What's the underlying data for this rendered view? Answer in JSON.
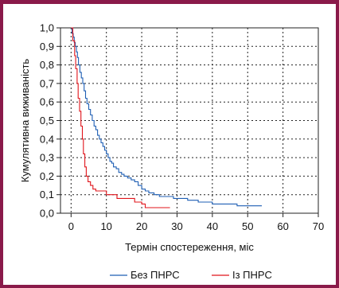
{
  "colors": {
    "frame": "#8a1a4a",
    "series_blue": "#1f5fb4",
    "series_red": "#e0141b",
    "grid": "#222222"
  },
  "chart_data": {
    "type": "line",
    "step": true,
    "xlabel": "Термін спостереження, міс",
    "ylabel": "Кумулятивна виживаність",
    "xlim": [
      -3,
      70
    ],
    "ylim": [
      0,
      1.0
    ],
    "x_ticks": [
      0,
      10,
      20,
      30,
      40,
      50,
      60,
      70
    ],
    "y_ticks": [
      0,
      0.1,
      0.2,
      0.3,
      0.4,
      0.5,
      0.6,
      0.7,
      0.8,
      0.9,
      1.0
    ],
    "x_tick_labels": [
      "0",
      "10",
      "20",
      "30",
      "40",
      "50",
      "60",
      "70"
    ],
    "y_tick_labels": [
      "0,0",
      "0,1",
      "0,2",
      "0,3",
      "0,4",
      "0,5",
      "0,6",
      "0,7",
      "0,8",
      "0,9",
      "1,0"
    ],
    "grid": true,
    "grid_style": "dotted",
    "legend_position": "bottom",
    "series": [
      {
        "name": "Без ПНРС",
        "color": "#1f5fb4",
        "points": [
          [
            0,
            1.0
          ],
          [
            0.3,
            0.97
          ],
          [
            0.6,
            0.95
          ],
          [
            0.9,
            0.92
          ],
          [
            1.2,
            0.9
          ],
          [
            1.5,
            0.87
          ],
          [
            1.8,
            0.84
          ],
          [
            2.1,
            0.8
          ],
          [
            2.5,
            0.76
          ],
          [
            2.9,
            0.73
          ],
          [
            3.3,
            0.7
          ],
          [
            3.7,
            0.66
          ],
          [
            4.1,
            0.62
          ],
          [
            4.5,
            0.59
          ],
          [
            5.0,
            0.56
          ],
          [
            5.5,
            0.53
          ],
          [
            6.0,
            0.5
          ],
          [
            6.5,
            0.47
          ],
          [
            7.0,
            0.45
          ],
          [
            7.5,
            0.42
          ],
          [
            8.0,
            0.4
          ],
          [
            8.5,
            0.38
          ],
          [
            9.0,
            0.36
          ],
          [
            9.5,
            0.34
          ],
          [
            10.0,
            0.32
          ],
          [
            10.5,
            0.3
          ],
          [
            11.0,
            0.28
          ],
          [
            11.5,
            0.27
          ],
          [
            12.0,
            0.25
          ],
          [
            12.8,
            0.24
          ],
          [
            13.5,
            0.22
          ],
          [
            14.3,
            0.21
          ],
          [
            15.0,
            0.2
          ],
          [
            16.0,
            0.19
          ],
          [
            17.0,
            0.18
          ],
          [
            18.0,
            0.17
          ],
          [
            19.0,
            0.15
          ],
          [
            20.0,
            0.13
          ],
          [
            21.0,
            0.12
          ],
          [
            22.0,
            0.11
          ],
          [
            23.5,
            0.1
          ],
          [
            25.0,
            0.09
          ],
          [
            29.0,
            0.08
          ],
          [
            33.0,
            0.07
          ],
          [
            36.0,
            0.06
          ],
          [
            40.0,
            0.05
          ],
          [
            47.0,
            0.04
          ],
          [
            54.0,
            0.04
          ]
        ]
      },
      {
        "name": "Із ПНРС",
        "color": "#e0141b",
        "points": [
          [
            0,
            1.0
          ],
          [
            0.5,
            0.93
          ],
          [
            1.0,
            0.85
          ],
          [
            1.3,
            0.78
          ],
          [
            1.7,
            0.7
          ],
          [
            2.0,
            0.62
          ],
          [
            2.4,
            0.55
          ],
          [
            2.8,
            0.47
          ],
          [
            3.2,
            0.4
          ],
          [
            3.5,
            0.32
          ],
          [
            3.9,
            0.25
          ],
          [
            4.3,
            0.2
          ],
          [
            4.8,
            0.17
          ],
          [
            5.5,
            0.15
          ],
          [
            6.2,
            0.13
          ],
          [
            7.0,
            0.12
          ],
          [
            10.0,
            0.1
          ],
          [
            13.0,
            0.08
          ],
          [
            18.0,
            0.06
          ],
          [
            20.0,
            0.05
          ],
          [
            21.0,
            0.03
          ],
          [
            28.0,
            0.03
          ]
        ]
      }
    ]
  }
}
